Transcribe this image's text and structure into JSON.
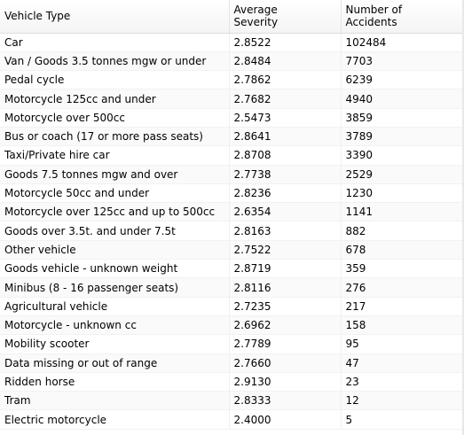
{
  "table": {
    "columns": [
      "Vehicle Type",
      "Average\nSeverity",
      "Number of\nAccidents"
    ],
    "rows": [
      [
        "Car",
        "2.8522",
        "102484"
      ],
      [
        "Van / Goods 3.5 tonnes mgw or under",
        "2.8484",
        "7703"
      ],
      [
        "Pedal cycle",
        "2.7862",
        "6239"
      ],
      [
        "Motorcycle 125cc and under",
        "2.7682",
        "4940"
      ],
      [
        "Motorcycle over 500cc",
        "2.5473",
        "3859"
      ],
      [
        "Bus or coach (17 or more pass seats)",
        "2.8641",
        "3789"
      ],
      [
        "Taxi/Private hire car",
        "2.8708",
        "3390"
      ],
      [
        "Goods 7.5 tonnes mgw and over",
        "2.7738",
        "2529"
      ],
      [
        "Motorcycle 50cc and under",
        "2.8236",
        "1230"
      ],
      [
        "Motorcycle over 125cc and up to 500cc",
        "2.6354",
        "1141"
      ],
      [
        "Goods over 3.5t. and under 7.5t",
        "2.8163",
        "882"
      ],
      [
        "Other vehicle",
        "2.7522",
        "678"
      ],
      [
        "Goods vehicle - unknown weight",
        "2.8719",
        "359"
      ],
      [
        "Minibus (8 - 16 passenger seats)",
        "2.8116",
        "276"
      ],
      [
        "Agricultural vehicle",
        "2.7235",
        "217"
      ],
      [
        "Motorcycle - unknown cc",
        "2.6962",
        "158"
      ],
      [
        "Mobility scooter",
        "2.7789",
        "95"
      ],
      [
        "Data missing or out of range",
        "2.7660",
        "47"
      ],
      [
        "Ridden horse",
        "2.9130",
        "23"
      ],
      [
        "Tram",
        "2.8333",
        "12"
      ],
      [
        "Electric motorcycle",
        "2.4000",
        "5"
      ]
    ]
  }
}
